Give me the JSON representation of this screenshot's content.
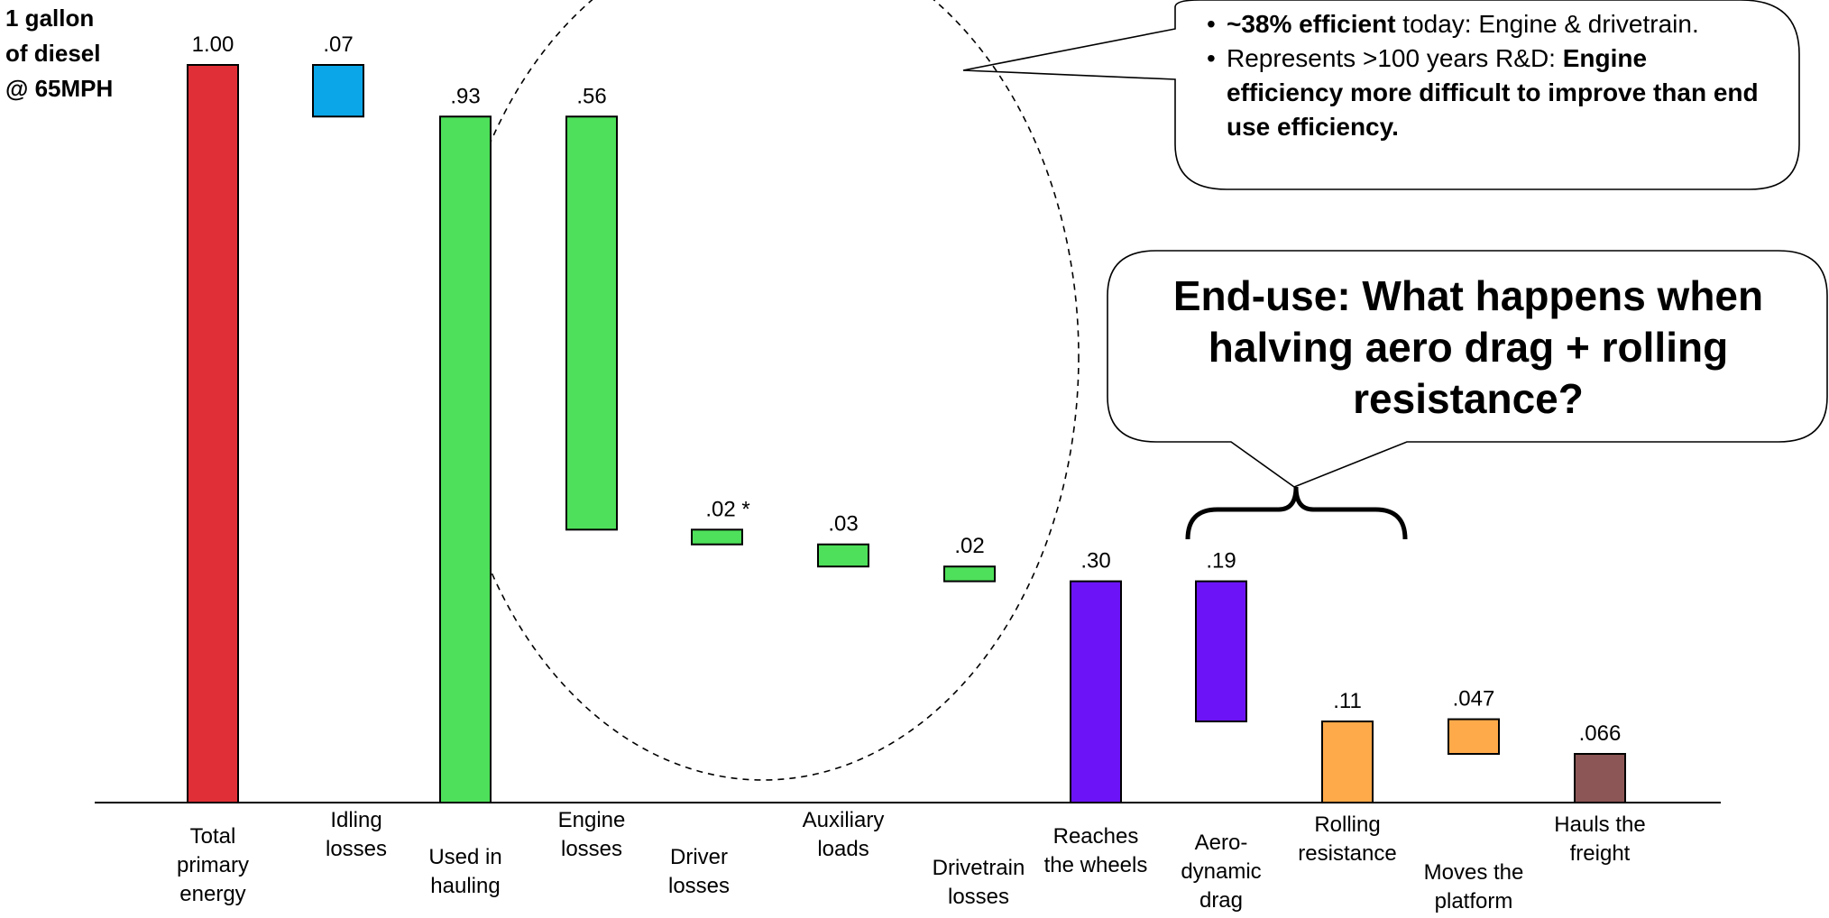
{
  "header": {
    "lines": [
      "1 gallon",
      "of diesel",
      "@ 65MPH"
    ]
  },
  "chart_data": {
    "type": "bar",
    "subtype": "waterfall",
    "title": "",
    "xlabel": "",
    "ylabel": "",
    "ylim": [
      0,
      1.0
    ],
    "categories": [
      {
        "label": [
          "Total",
          "primary",
          "energy"
        ],
        "value": 1.0,
        "value_label": "1.00",
        "base": 0.0,
        "color": "#e02f36"
      },
      {
        "label": [
          "Idling",
          "losses"
        ],
        "value": 0.07,
        "value_label": ".07",
        "base": 0.93,
        "color": "#0aa6e8"
      },
      {
        "label": [
          "Used in",
          "hauling"
        ],
        "value": 0.93,
        "value_label": ".93",
        "base": 0.0,
        "color": "#4ee05a"
      },
      {
        "label": [
          "Engine",
          "losses"
        ],
        "value": 0.56,
        "value_label": ".56",
        "base": 0.37,
        "color": "#4ee05a"
      },
      {
        "label": [
          "Driver",
          "losses"
        ],
        "value": 0.02,
        "value_label": ".02 *",
        "base": 0.35,
        "color": "#4ee05a"
      },
      {
        "label": [
          "Auxiliary",
          "loads"
        ],
        "value": 0.03,
        "value_label": ".03",
        "base": 0.32,
        "color": "#4ee05a"
      },
      {
        "label": [
          "Drivetrain",
          "losses"
        ],
        "value": 0.02,
        "value_label": ".02",
        "base": 0.3,
        "color": "#4ee05a"
      },
      {
        "label": [
          "Reaches",
          "the wheels"
        ],
        "value": 0.3,
        "value_label": ".30",
        "base": 0.0,
        "color": "#6c14f7"
      },
      {
        "label": [
          "Aero-",
          "dynamic",
          "drag"
        ],
        "value": 0.19,
        "value_label": ".19",
        "base": 0.11,
        "color": "#6c14f7"
      },
      {
        "label": [
          "Rolling",
          "resistance"
        ],
        "value": 0.11,
        "value_label": ".11",
        "base": 0.0,
        "color": "#ffaa4a"
      },
      {
        "label": [
          "Moves the",
          "platform"
        ],
        "value": 0.047,
        "value_label": ".047",
        "base": 0.066,
        "color": "#ffaa4a"
      },
      {
        "label": [
          "Hauls the",
          "freight"
        ],
        "value": 0.066,
        "value_label": ".066",
        "base": 0.0,
        "color": "#8c5656"
      }
    ],
    "annotations": {
      "engine_callout": [
        [
          {
            "text": "~38% efficient",
            "bold": true
          },
          {
            "text": " today: Engine & drivetrain.",
            "bold": false
          }
        ],
        [
          {
            "text": "Represents >100 years R&D: ",
            "bold": false
          },
          {
            "text": "Engine efficiency more difficult to improve than end use efficiency.",
            "bold": true
          }
        ]
      ],
      "end_use_callout": "End-use: What happens when halving aero drag + rolling resistance?"
    }
  }
}
